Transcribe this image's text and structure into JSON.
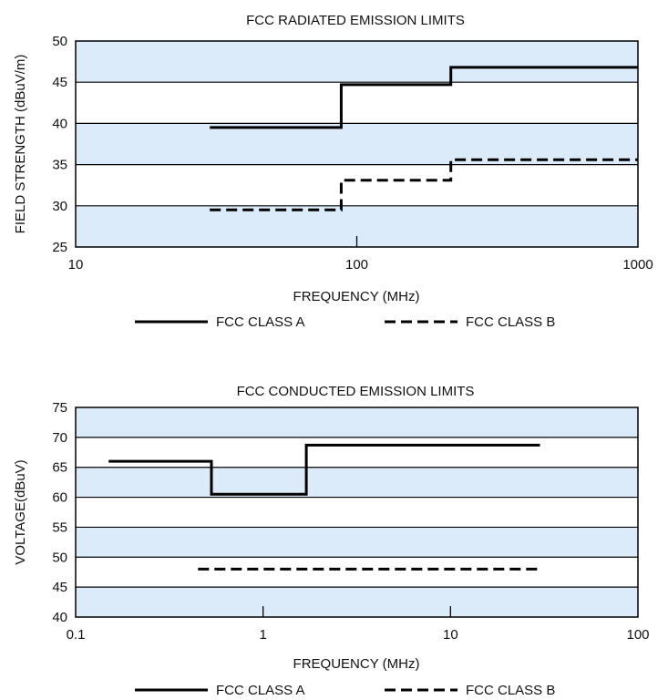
{
  "chart_data": [
    {
      "type": "line",
      "title": "FCC RADIATED EMISSION LIMITS",
      "xlabel": "FREQUENCY (MHz)",
      "ylabel": "FIELD STRENGTH (dBuV/m)",
      "x_scale": "log",
      "xlim": [
        10,
        1000
      ],
      "ylim": [
        25,
        50
      ],
      "x_ticks": [
        10,
        100,
        1000
      ],
      "x_tick_labels": [
        "10",
        "100",
        "1000"
      ],
      "y_ticks": [
        25,
        30,
        35,
        40,
        45,
        50
      ],
      "y_tick_labels": [
        "25",
        "30",
        "35",
        "40",
        "45",
        "50"
      ],
      "band_color": "#dcebf9",
      "legend_position": "bottom",
      "series": [
        {
          "name": "FCC CLASS A",
          "style": "solid",
          "x": [
            30,
            88,
            88,
            216,
            216,
            1000
          ],
          "y": [
            39.5,
            39.5,
            44.7,
            44.7,
            46.8,
            46.8
          ]
        },
        {
          "name": "FCC CLASS B",
          "style": "dashed",
          "x": [
            30,
            88,
            88,
            216,
            216,
            1000
          ],
          "y": [
            29.5,
            29.5,
            33.1,
            33.1,
            35.6,
            35.6
          ]
        }
      ]
    },
    {
      "type": "line",
      "title": "FCC CONDUCTED EMISSION LIMITS",
      "xlabel": "FREQUENCY (MHz)",
      "ylabel": "VOLTAGE(dBuV)",
      "x_scale": "log",
      "xlim": [
        0.1,
        100
      ],
      "ylim": [
        40,
        75
      ],
      "x_ticks": [
        0.1,
        1,
        10,
        100
      ],
      "x_tick_labels": [
        "0.1",
        "1",
        "10",
        "100"
      ],
      "y_ticks": [
        40,
        45,
        50,
        55,
        60,
        65,
        70,
        75
      ],
      "y_tick_labels": [
        "40",
        "45",
        "50",
        "55",
        "60",
        "65",
        "70",
        "75"
      ],
      "band_color": "#dcebf9",
      "legend_position": "bottom",
      "series": [
        {
          "name": "FCC CLASS A",
          "style": "solid",
          "x": [
            0.15,
            0.53,
            0.53,
            1.7,
            1.7,
            30
          ],
          "y": [
            66,
            66,
            60.5,
            60.5,
            68.7,
            68.7
          ]
        },
        {
          "name": "FCC CLASS B",
          "style": "dashed",
          "x": [
            0.45,
            30
          ],
          "y": [
            48,
            48
          ]
        }
      ]
    }
  ]
}
